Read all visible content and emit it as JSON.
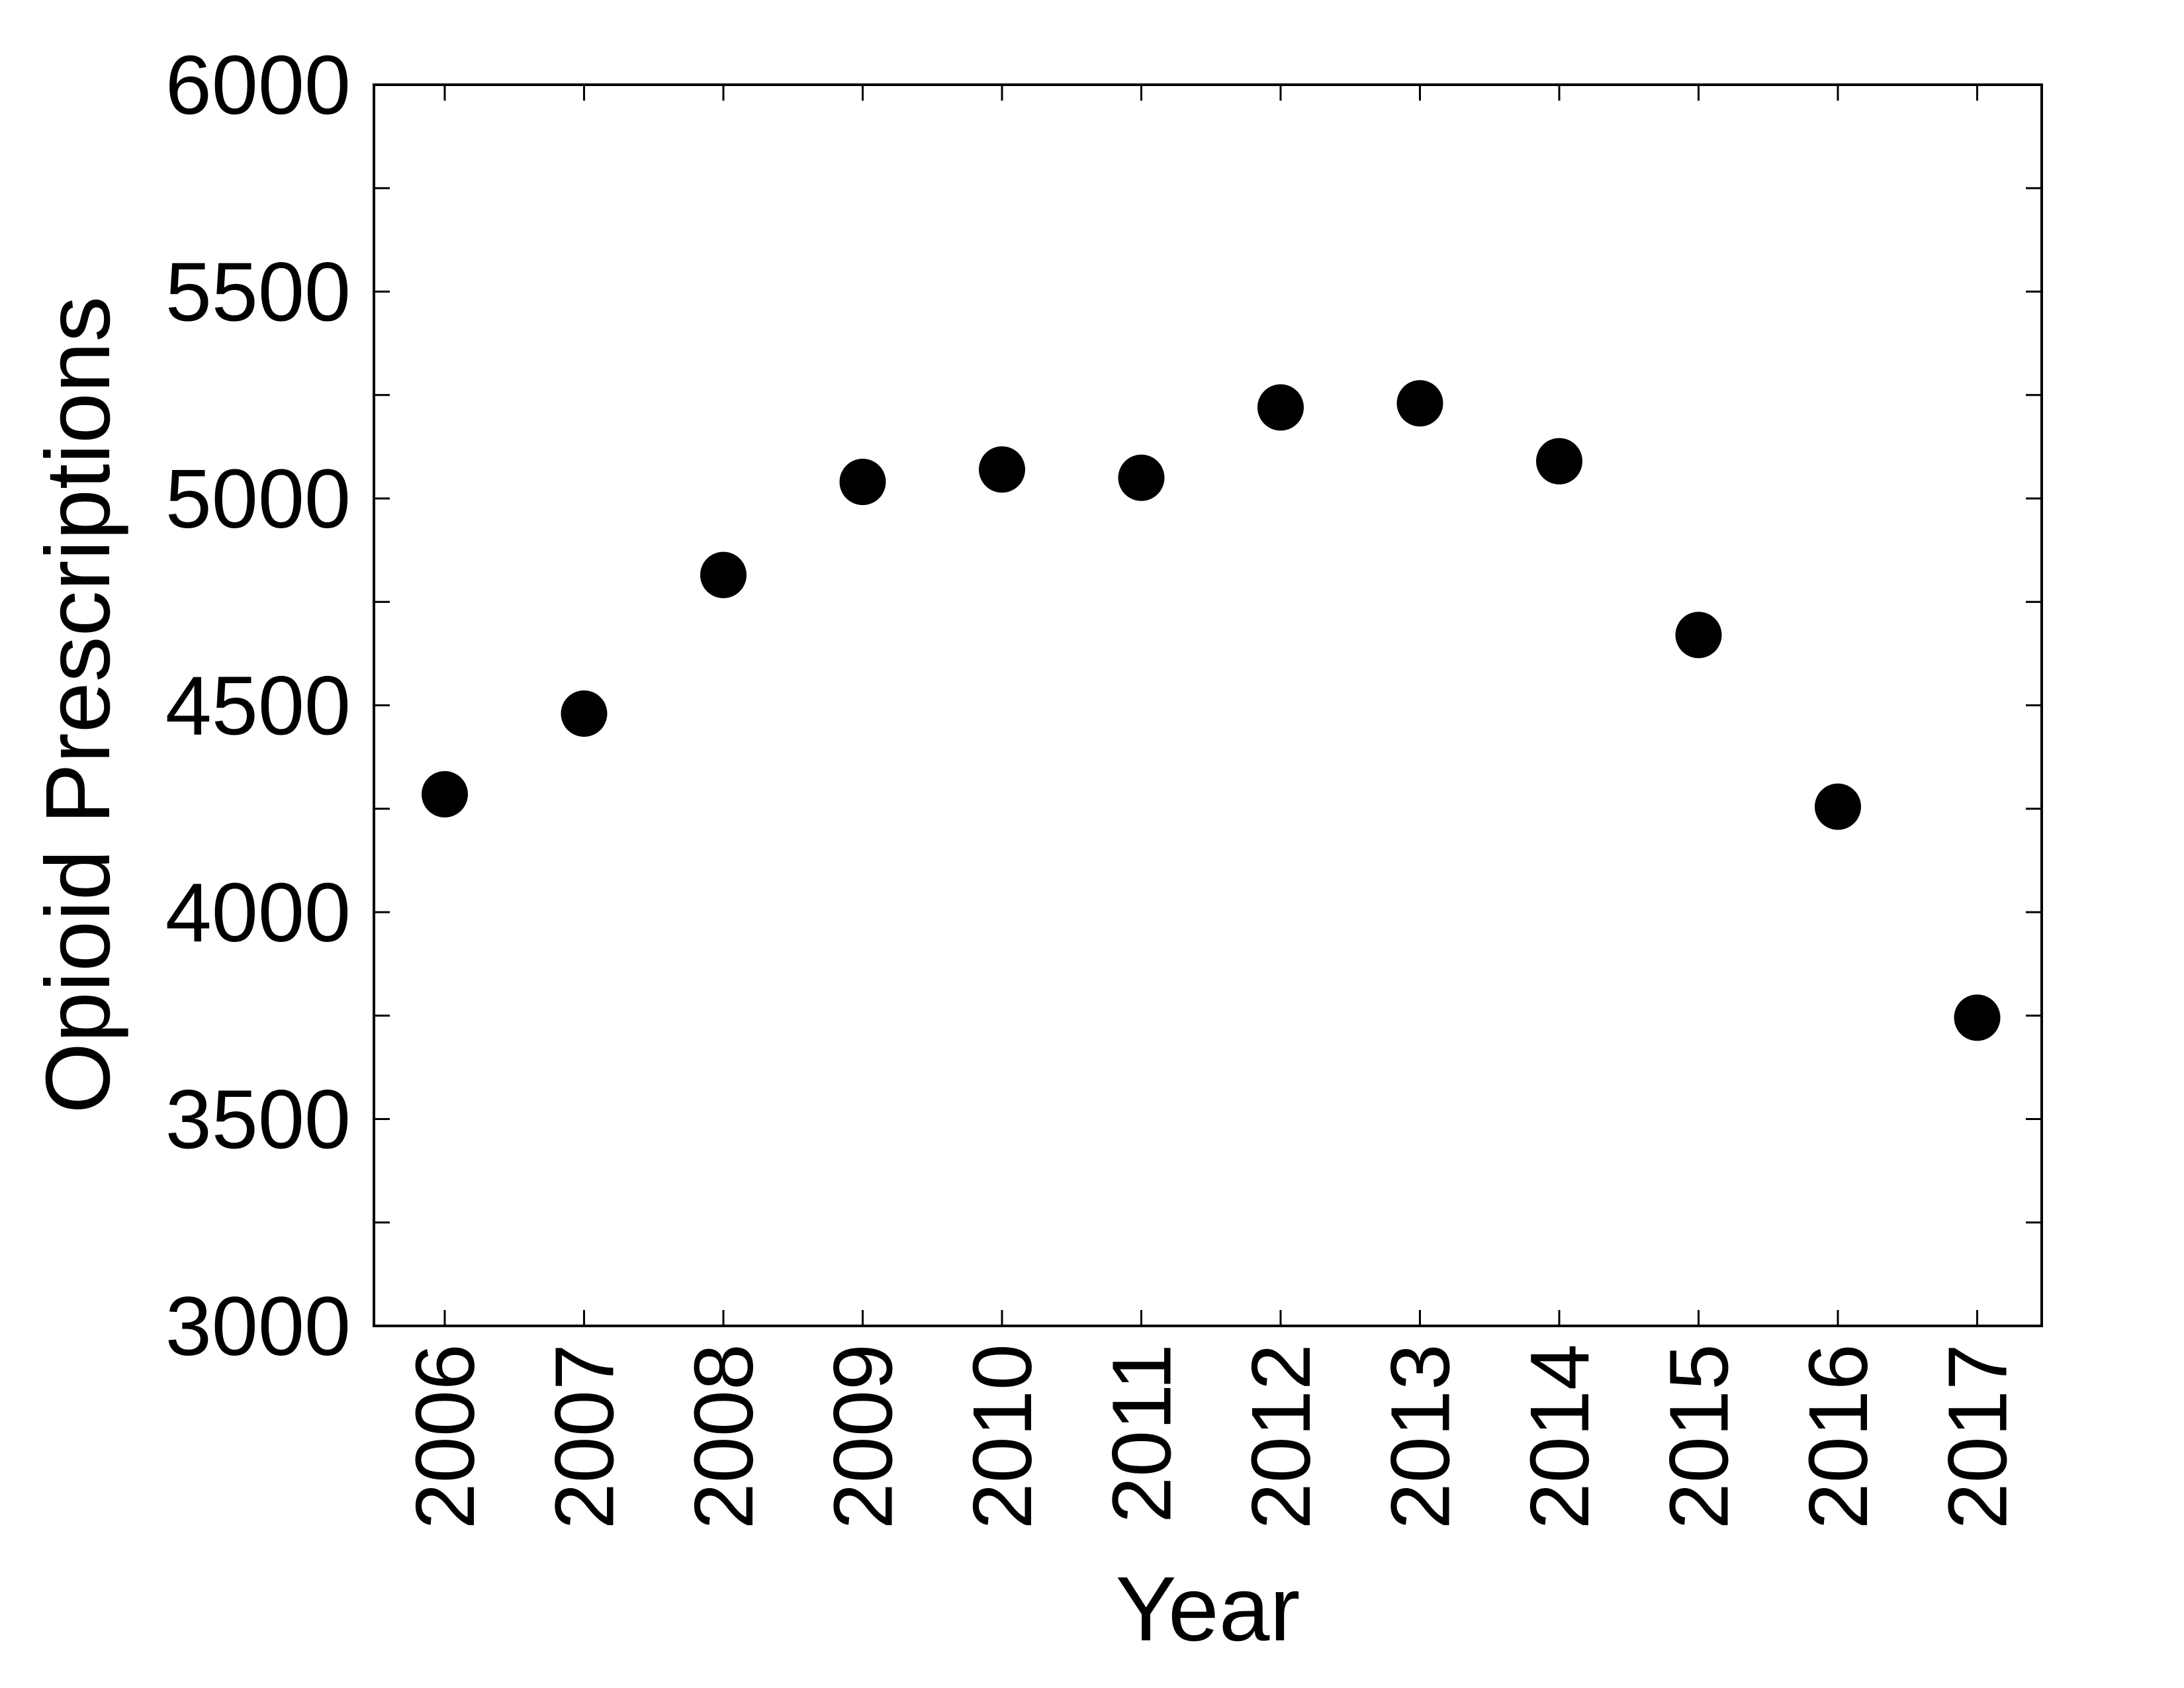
{
  "chart_data": {
    "type": "scatter",
    "title": "",
    "xlabel": "Year",
    "ylabel": "Opioid Prescriptions",
    "categories": [
      "2006",
      "2007",
      "2008",
      "2009",
      "2010",
      "2011",
      "2012",
      "2013",
      "2014",
      "2015",
      "2016",
      "2017"
    ],
    "values": [
      4285,
      4480,
      4815,
      5040,
      5070,
      5050,
      5220,
      5230,
      5090,
      4670,
      4255,
      3745
    ],
    "ylim": [
      3000,
      6000
    ],
    "yticks": [
      "3000",
      "3500",
      "4000",
      "4500",
      "5000",
      "5500",
      "6000"
    ],
    "y_minor_step": 250,
    "grid": false,
    "legend": "none",
    "marker_color": "#000000"
  }
}
